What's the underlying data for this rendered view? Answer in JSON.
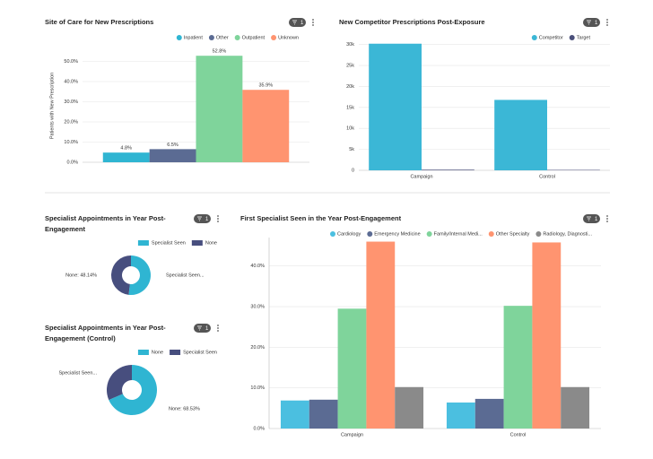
{
  "chart_data": [
    {
      "type": "bar",
      "title": "Site of Care for New Prescriptions",
      "filter_badge": "1",
      "y_label": "Patients with New Prescription",
      "categories": [
        null
      ],
      "series": [
        {
          "name": "Inpatient",
          "color": "#2fb5d2",
          "values": [
            4.8
          ],
          "value_labels": [
            "4.8%"
          ]
        },
        {
          "name": "Other",
          "color": "#5b6b93",
          "values": [
            6.5
          ],
          "value_labels": [
            "6.5%"
          ]
        },
        {
          "name": "Outpatient",
          "color": "#7fd49b",
          "values": [
            52.8
          ],
          "value_labels": [
            "52.8%"
          ]
        },
        {
          "name": "Unknown",
          "color": "#ff9470",
          "values": [
            35.9
          ],
          "value_labels": [
            "35.9%"
          ]
        }
      ],
      "ylim": [
        0,
        56
      ],
      "yticks": [
        {
          "value": 0,
          "label": "0.0%"
        },
        {
          "value": 10,
          "label": "10.0%"
        },
        {
          "value": 20,
          "label": "20.0%"
        },
        {
          "value": 30,
          "label": "30.0%"
        },
        {
          "value": 40,
          "label": "40.0%"
        },
        {
          "value": 50,
          "label": "50.0%"
        }
      ],
      "grid": true,
      "legend": "top-right"
    },
    {
      "type": "bar",
      "title": "New Competitor Prescriptions Post-Exposure",
      "filter_badge": "1",
      "categories": [
        "Campaign",
        "Control"
      ],
      "series": [
        {
          "name": "Competitor",
          "color": "#3bb7d6",
          "values": [
            30200,
            16800
          ]
        },
        {
          "name": "Target",
          "color": "#4a4f7a",
          "values": [
            150,
            100
          ]
        }
      ],
      "ylim": [
        0,
        31000
      ],
      "yticks": [
        0,
        {
          "value": 5000,
          "label": "5k"
        },
        {
          "value": 10000,
          "label": "10k"
        },
        {
          "value": 15000,
          "label": "15k"
        },
        {
          "value": 20000,
          "label": "20k"
        },
        {
          "value": 25000,
          "label": "25k"
        },
        {
          "value": 30000,
          "label": "30k"
        }
      ],
      "grid": true,
      "legend": "top-right"
    },
    {
      "type": "donut",
      "title": "Specialist Appointments in Year Post-Engagement",
      "filter_badge": "1",
      "categories": [
        "Specialist Seen",
        "None"
      ],
      "values": [
        51.86,
        48.14
      ],
      "colors": [
        "#2fb5d2",
        "#474e7e"
      ],
      "value_labels": [
        "Specialist Seen...",
        "None: 48.14%"
      ],
      "legend": "top-right"
    },
    {
      "type": "donut",
      "title": "Specialist Appointments in Year Post-Engagement (Control)",
      "filter_badge": "1",
      "categories": [
        "None",
        "Specialist Seen"
      ],
      "values": [
        68.53,
        31.47
      ],
      "colors": [
        "#2fb5d2",
        "#474e7e"
      ],
      "value_labels": [
        "None: 68.53%",
        "Specialist Seen..."
      ],
      "legend": "top-right"
    },
    {
      "type": "bar",
      "title": "First Specialist Seen in the Year Post-Engagement",
      "filter_badge": "1",
      "categories": [
        "Campaign",
        "Control"
      ],
      "series": [
        {
          "name": "Cardiology",
          "color": "#4bbfe0",
          "values": [
            6.9,
            6.4
          ]
        },
        {
          "name": "Emergency Medicine",
          "color": "#5b6b93",
          "values": [
            7.1,
            7.3
          ]
        },
        {
          "name": "Family/Internal Medi...",
          "color": "#7fd49b",
          "values": [
            29.5,
            30.2
          ]
        },
        {
          "name": "Other Specialty",
          "color": "#ff9470",
          "values": [
            46.0,
            45.8
          ]
        },
        {
          "name": "Radiology, Diagnosti...",
          "color": "#8a8a8a",
          "values": [
            10.2,
            10.2
          ]
        }
      ],
      "ylim": [
        0,
        47
      ],
      "yticks": [
        {
          "value": 0,
          "label": "0.0%"
        },
        {
          "value": 10,
          "label": "10.0%"
        },
        {
          "value": 20,
          "label": "20.0%"
        },
        {
          "value": 30,
          "label": "30.0%"
        },
        {
          "value": 40,
          "label": "40.0%"
        }
      ],
      "grid": true,
      "legend": "top-right"
    }
  ]
}
